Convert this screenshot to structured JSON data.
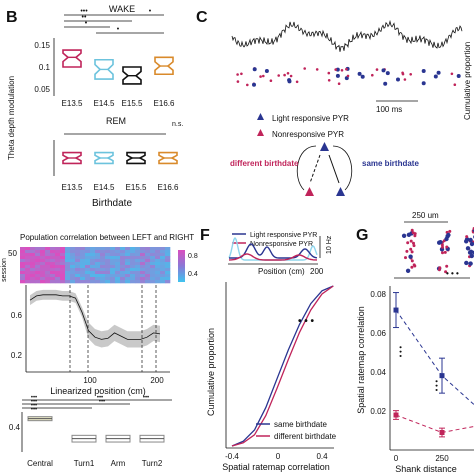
{
  "panels": {
    "B": {
      "label": "B",
      "wake_title": "WAKE",
      "rem_title": "REM",
      "ylabel": "Theta depth modulation",
      "xlabel": "Birthdate",
      "yticks": [
        "0.15",
        "0.1",
        "0.05"
      ],
      "categories": [
        "E13.5",
        "E14.5",
        "E15.5",
        "E16.6"
      ],
      "ns_label": "n.s.",
      "colors": [
        "#c0245a",
        "#6cc3dd",
        "#111111",
        "#d98a2b"
      ]
    },
    "C": {
      "label": "C",
      "scalebar_label": "100 ms",
      "legend_light": "Light responsive PYR",
      "legend_non": "Nonresponsive PYR",
      "different_label": "different birthdate",
      "same_label": "same birthdate",
      "cut_text": "Cumulative proportion",
      "light_color": "#2a3591",
      "non_color": "#c0245a"
    },
    "popcorr": {
      "title": "Population correlation between LEFT and RIGHT",
      "heat_y_tick": "50",
      "colorbar_ticks": [
        "0.8",
        "0.4"
      ],
      "profile_yticks": [
        "0.6",
        "0.2"
      ],
      "x_ticks": [
        "100",
        "200"
      ],
      "xlabel": "Linearized position (cm)",
      "box_ytick": "0.4",
      "box_categories": [
        "Central",
        "Turn1",
        "Arm",
        "Turn2"
      ]
    },
    "F": {
      "label": "F",
      "legend_light": "Light responsive PYR",
      "legend_non": "Nonresponsive PYR",
      "rate_label": "10 Hz",
      "pos_label": "Position (cm)",
      "pos_tick": "200",
      "ylabel": "Cumulative proportion",
      "xlabel": "Spatial ratemap correlation",
      "xticks": [
        "-0.4",
        "0",
        "0.4"
      ],
      "legend_same": "same birthdate",
      "legend_diff": "different birthdate",
      "sig": "• • •"
    },
    "G": {
      "label": "G",
      "scale_label": "250 um",
      "ylabel": "Spatial ratemap correlation",
      "yticks": [
        "0.08",
        "0.06",
        "0.04",
        "0.02"
      ],
      "xticks": [
        "0",
        "250"
      ],
      "xlabel": "Shank distance",
      "sig": "• • •"
    }
  },
  "chart_data": [
    {
      "type": "box",
      "title": "WAKE",
      "categories": [
        "E13.5",
        "E14.5",
        "E15.5",
        "E16.6"
      ],
      "median": [
        0.12,
        0.095,
        0.082,
        0.102
      ],
      "q1": [
        0.1,
        0.075,
        0.065,
        0.085
      ],
      "q3": [
        0.135,
        0.115,
        0.1,
        0.12
      ],
      "ylim": [
        0.04,
        0.16
      ]
    },
    {
      "type": "box",
      "title": "REM",
      "categories": [
        "E13.5",
        "E14.5",
        "E15.5",
        "E16.6"
      ],
      "median": [
        0.5,
        0.5,
        0.5,
        0.5
      ],
      "q1": [
        0.35,
        0.35,
        0.35,
        0.35
      ],
      "q3": [
        0.65,
        0.65,
        0.65,
        0.65
      ],
      "ylim": [
        0,
        1
      ]
    },
    {
      "type": "line",
      "title": "",
      "x": [
        0,
        10,
        20,
        30,
        40,
        50,
        60,
        70,
        80,
        90,
        100,
        110,
        120,
        130,
        140,
        150,
        160,
        170,
        180,
        190,
        200
      ],
      "series": [
        {
          "values": [
            0.66,
            0.7,
            0.71,
            0.71,
            0.71,
            0.7,
            0.7,
            0.68,
            0.55,
            0.38,
            0.32,
            0.3,
            0.31,
            0.36,
            0.33,
            0.3,
            0.3,
            0.3,
            0.32,
            0.36,
            0.35
          ]
        }
      ],
      "xlabel": "Linearized position (cm)",
      "ylim": [
        0,
        0.8
      ]
    },
    {
      "type": "box",
      "title": "",
      "categories": [
        "Central",
        "Turn1",
        "Arm",
        "Turn2"
      ],
      "median": [
        0.5,
        0.2,
        0.2,
        0.2
      ],
      "q1": [
        0.47,
        0.15,
        0.15,
        0.15
      ],
      "q3": [
        0.53,
        0.25,
        0.25,
        0.25
      ],
      "ylim": [
        0,
        0.6
      ]
    },
    {
      "type": "line",
      "title": "",
      "x": [
        -0.4,
        -0.3,
        -0.2,
        -0.1,
        0,
        0.1,
        0.2,
        0.3,
        0.4,
        0.5
      ],
      "series": [
        {
          "name": "same birthdate",
          "values": [
            0.0,
            0.03,
            0.1,
            0.24,
            0.42,
            0.6,
            0.76,
            0.89,
            0.97,
            1.0
          ]
        },
        {
          "name": "different birthdate",
          "values": [
            0.0,
            0.02,
            0.07,
            0.19,
            0.36,
            0.54,
            0.71,
            0.85,
            0.95,
            1.0
          ]
        }
      ],
      "xlabel": "Spatial ratemap correlation",
      "ylabel": "Cumulative proportion",
      "ylim": [
        0,
        1
      ]
    },
    {
      "type": "scatter",
      "title": "",
      "x": [
        0,
        250,
        500
      ],
      "series": [
        {
          "name": "same birthdate",
          "values": [
            0.074,
            0.044,
            0.025
          ]
        },
        {
          "name": "different birthdate",
          "values": [
            0.026,
            0.018,
            0.022
          ]
        }
      ],
      "xlabel": "Shank distance",
      "ylabel": "Spatial ratemap correlation",
      "ylim": [
        0.01,
        0.085
      ]
    }
  ]
}
